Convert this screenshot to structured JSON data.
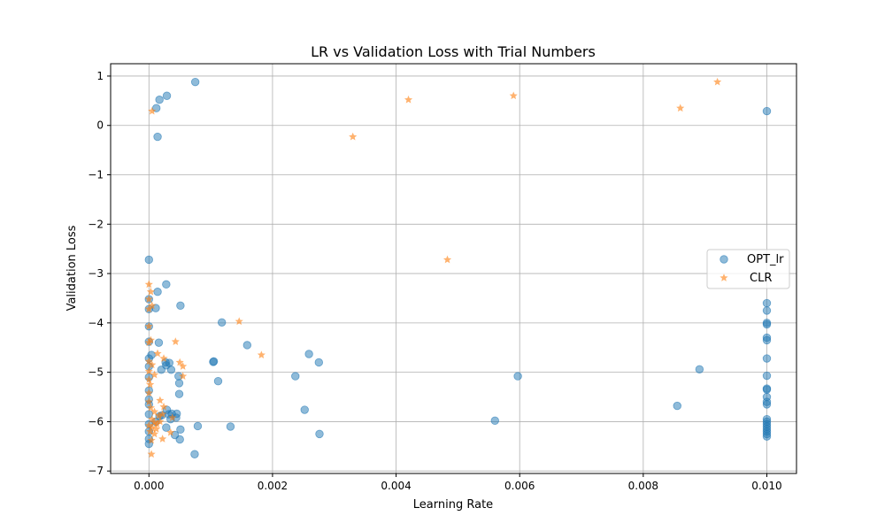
{
  "chart_data": {
    "type": "scatter",
    "title": "LR vs Validation Loss with Trial Numbers",
    "xlabel": "Learning Rate",
    "ylabel": "Validation Loss",
    "xlim": [
      -0.00062,
      0.01048
    ],
    "ylim": [
      -7.05,
      1.25
    ],
    "xticks": [
      0.0,
      0.002,
      0.004,
      0.006,
      0.008,
      0.01
    ],
    "xtick_labels": [
      "0.000",
      "0.002",
      "0.004",
      "0.006",
      "0.008",
      "0.010"
    ],
    "yticks": [
      1,
      0,
      -1,
      -2,
      -3,
      -4,
      -5,
      -6,
      -7
    ],
    "ytick_labels": [
      "1",
      "0",
      "−1",
      "−2",
      "−3",
      "−4",
      "−5",
      "−6",
      "−7"
    ],
    "grid": true,
    "legend_position": "center-right",
    "series": [
      {
        "name": "OPT_lr",
        "marker": "circle",
        "color": "#1f77b4",
        "points": [
          [
            0.00075,
            0.88
          ],
          [
            0.00029,
            0.6
          ],
          [
            0.00017,
            0.52
          ],
          [
            0.00012,
            0.35
          ],
          [
            0.00014,
            -0.23
          ],
          [
            0.01,
            0.29
          ],
          [
            0.0,
            -2.72
          ],
          [
            0.00028,
            -3.22
          ],
          [
            0.00014,
            -3.37
          ],
          [
            0.0,
            -3.52
          ],
          [
            0.00011,
            -3.7
          ],
          [
            0.00051,
            -3.65
          ],
          [
            0.0,
            -3.72
          ],
          [
            0.00118,
            -3.99
          ],
          [
            0.0,
            -4.07
          ],
          [
            0.01,
            -3.6
          ],
          [
            0.01,
            -3.75
          ],
          [
            0.01,
            -4.0
          ],
          [
            0.01,
            -4.03
          ],
          [
            0.01,
            -4.3
          ],
          [
            0.01,
            -4.35
          ],
          [
            0.00016,
            -4.4
          ],
          [
            0.0,
            -4.38
          ],
          [
            0.00159,
            -4.45
          ],
          [
            0.00259,
            -4.63
          ],
          [
            0.00275,
            -4.8
          ],
          [
            0.00105,
            -4.78
          ],
          [
            0.00104,
            -4.79
          ],
          [
            0.00027,
            -4.8
          ],
          [
            0.00033,
            -4.81
          ],
          [
            0.00028,
            -4.86
          ],
          [
            0.0002,
            -4.95
          ],
          [
            0.00036,
            -4.95
          ],
          [
            0.00048,
            -5.08
          ],
          [
            0.00049,
            -5.22
          ],
          [
            0.00112,
            -5.18
          ],
          [
            0.00237,
            -5.08
          ],
          [
            4e-05,
            -4.65
          ],
          [
            0.0,
            -4.72
          ],
          [
            0.0,
            -4.88
          ],
          [
            0.0,
            -5.1
          ],
          [
            0.0,
            -5.37
          ],
          [
            0.0,
            -5.55
          ],
          [
            0.0,
            -5.65
          ],
          [
            0.0,
            -5.85
          ],
          [
            0.0,
            -6.05
          ],
          [
            0.0,
            -6.2
          ],
          [
            0.0,
            -6.35
          ],
          [
            0.0,
            -6.45
          ],
          [
            0.00049,
            -5.44
          ],
          [
            0.00029,
            -5.76
          ],
          [
            0.00032,
            -5.85
          ],
          [
            0.00037,
            -5.84
          ],
          [
            0.00045,
            -5.84
          ],
          [
            0.00044,
            -5.92
          ],
          [
            0.00035,
            -5.95
          ],
          [
            0.00021,
            -5.87
          ],
          [
            0.00017,
            -5.89
          ],
          [
            0.00011,
            -6.0
          ],
          [
            0.00028,
            -6.12
          ],
          [
            0.00051,
            -6.16
          ],
          [
            0.00079,
            -6.09
          ],
          [
            0.00042,
            -6.27
          ],
          [
            0.0005,
            -6.36
          ],
          [
            0.00074,
            -6.66
          ],
          [
            0.00132,
            -6.1
          ],
          [
            0.00252,
            -5.76
          ],
          [
            0.00276,
            -6.25
          ],
          [
            0.0056,
            -5.98
          ],
          [
            0.00597,
            -5.08
          ],
          [
            0.00855,
            -5.68
          ],
          [
            0.00891,
            -4.94
          ],
          [
            0.01,
            -4.72
          ],
          [
            0.01,
            -5.07
          ],
          [
            0.01,
            -5.33
          ],
          [
            0.01,
            -5.35
          ],
          [
            0.01,
            -5.5
          ],
          [
            0.01,
            -5.6
          ],
          [
            0.01,
            -5.65
          ],
          [
            0.01,
            -5.95
          ],
          [
            0.01,
            -6.0
          ],
          [
            0.01,
            -6.05
          ],
          [
            0.01,
            -6.1
          ],
          [
            0.01,
            -6.15
          ],
          [
            0.01,
            -6.2
          ],
          [
            0.01,
            -6.25
          ],
          [
            0.01,
            -6.3
          ]
        ]
      },
      {
        "name": "CLR",
        "marker": "star",
        "color": "#ff7f0e",
        "points": [
          [
            0.0092,
            0.88
          ],
          [
            0.0059,
            0.6
          ],
          [
            0.0042,
            0.52
          ],
          [
            0.0086,
            0.35
          ],
          [
            5e-05,
            0.29
          ],
          [
            0.0033,
            -0.23
          ],
          [
            0.00483,
            -2.72
          ],
          [
            0.0,
            -3.22
          ],
          [
            3e-05,
            -3.37
          ],
          [
            0.0,
            -3.52
          ],
          [
            5e-05,
            -3.65
          ],
          [
            0.0,
            -3.72
          ],
          [
            0.00146,
            -3.97
          ],
          [
            0.0,
            -4.07
          ],
          [
            0.00043,
            -4.38
          ],
          [
            3e-05,
            -4.35
          ],
          [
            0.0,
            -4.4
          ],
          [
            0.00182,
            -4.65
          ],
          [
            0.00014,
            -4.62
          ],
          [
            0.00024,
            -4.72
          ],
          [
            0.0,
            -4.78
          ],
          [
            5e-05,
            -4.85
          ],
          [
            0.0005,
            -4.8
          ],
          [
            0.00055,
            -4.88
          ],
          [
            0.0,
            -4.98
          ],
          [
            9e-05,
            -5.05
          ],
          [
            0.00055,
            -5.08
          ],
          [
            0.0,
            -5.15
          ],
          [
            2e-05,
            -5.25
          ],
          [
            0.0,
            -5.42
          ],
          [
            0.00018,
            -5.57
          ],
          [
            0.00024,
            -5.7
          ],
          [
            0.0,
            -5.6
          ],
          [
            3e-05,
            -5.72
          ],
          [
            9e-05,
            -5.8
          ],
          [
            0.00016,
            -5.88
          ],
          [
            0.00022,
            -5.85
          ],
          [
            0.00038,
            -5.92
          ],
          [
            5e-05,
            -5.95
          ],
          [
            9e-05,
            -6.02
          ],
          [
            0.0,
            -6.08
          ],
          [
            5e-05,
            -6.12
          ],
          [
            0.00012,
            -6.15
          ],
          [
            2e-05,
            -6.2
          ],
          [
            9e-05,
            -6.25
          ],
          [
            0.00035,
            -6.22
          ],
          [
            0.00022,
            -6.35
          ],
          [
            4e-05,
            -6.38
          ],
          [
            4e-05,
            -6.66
          ],
          [
            0.00013,
            -6.05
          ],
          [
            0.00018,
            -6.0
          ]
        ]
      }
    ]
  }
}
